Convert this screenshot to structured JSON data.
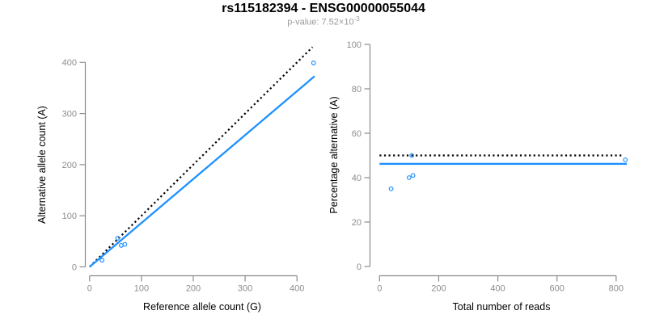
{
  "header": {
    "title": "rs115182394 - ENSG00000055044",
    "subtitle_base": "p-value: 7.52×10",
    "subtitle_sup": "-3"
  },
  "colors": {
    "accent_blue": "#1E90FF",
    "axis_gray": "#8C8C8C",
    "tick_label_gray": "#8C8C8C",
    "axis_title_black": "#000000",
    "subtitle_gray": "#9A9A9A",
    "dotted_black": "#000000"
  },
  "chart_data": [
    {
      "type": "scatter",
      "id": "allele-counts",
      "title": "",
      "xlabel": "Reference allele count (G)",
      "ylabel": "Alternative allele count (A)",
      "xlim": [
        0,
        440
      ],
      "ylim": [
        0,
        430
      ],
      "xticks": [
        0,
        100,
        200,
        300,
        400
      ],
      "yticks": [
        0,
        100,
        200,
        300,
        400
      ],
      "grid": false,
      "legend": "none",
      "points": [
        [
          24,
          13
        ],
        [
          54,
          56
        ],
        [
          61,
          42
        ],
        [
          68,
          44
        ],
        [
          432,
          399
        ]
      ],
      "lines": [
        {
          "name": "identity-line",
          "style": "dotted",
          "color": "#000000",
          "from": [
            0,
            0
          ],
          "to": [
            430,
            430
          ]
        },
        {
          "name": "fit-line",
          "style": "solid",
          "color": "#1E90FF",
          "from": [
            0,
            0
          ],
          "to": [
            434,
            373
          ]
        }
      ]
    },
    {
      "type": "scatter",
      "id": "percentage-alternative",
      "title": "",
      "xlabel": "Total number of reads",
      "ylabel": "Percentage alternative (A)",
      "xlim": [
        0,
        860
      ],
      "ylim": [
        0,
        100
      ],
      "xticks": [
        0,
        200,
        400,
        600,
        800
      ],
      "yticks": [
        0,
        20,
        40,
        60,
        80,
        100
      ],
      "grid": false,
      "legend": "none",
      "points": [
        [
          39,
          35
        ],
        [
          100,
          40
        ],
        [
          113,
          41
        ],
        [
          109,
          50
        ],
        [
          831,
          48
        ]
      ],
      "lines": [
        {
          "name": "expected-50pct-line",
          "style": "dotted",
          "color": "#000000",
          "from": [
            0,
            50
          ],
          "to": [
            820,
            50
          ]
        },
        {
          "name": "fit-line",
          "style": "solid",
          "color": "#1E90FF",
          "from": [
            0,
            46.2
          ],
          "to": [
            836,
            46.2
          ]
        }
      ]
    }
  ]
}
